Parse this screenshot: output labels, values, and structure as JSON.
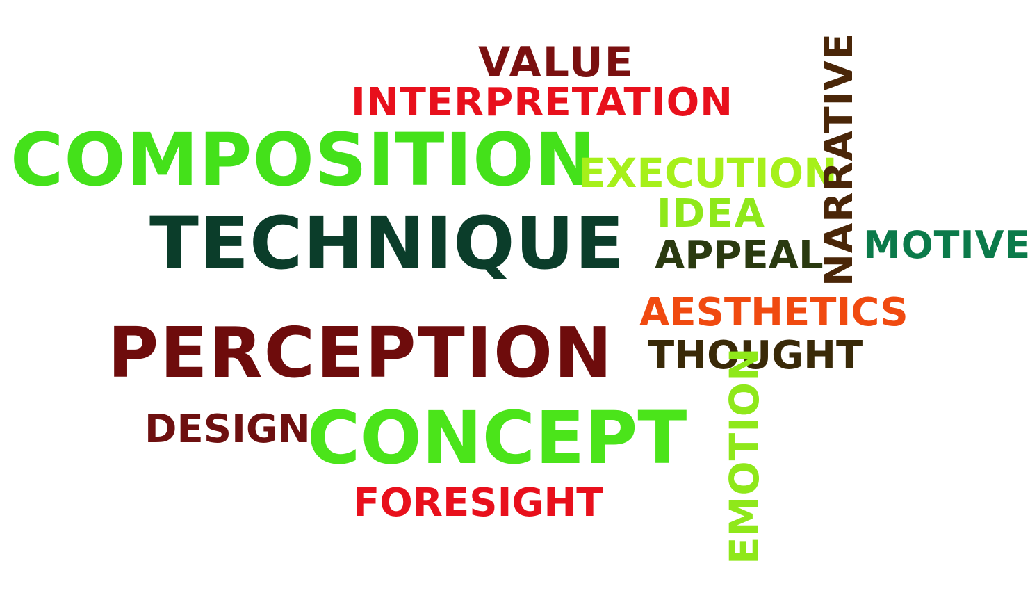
{
  "words": {
    "value": {
      "text": "VALUE",
      "color": "#7a1010"
    },
    "interpretation": {
      "text": "INTERPRETATION",
      "color": "#e8101c"
    },
    "composition": {
      "text": "COMPOSITION",
      "color": "#44e11a"
    },
    "execution": {
      "text": "EXECUTION",
      "color": "#a6f01a"
    },
    "idea": {
      "text": "IDEA",
      "color": "#8fe81a"
    },
    "technique": {
      "text": "TECHNIQUE",
      "color": "#0b3d2a"
    },
    "appeal": {
      "text": "APPEAL",
      "color": "#2a3a10"
    },
    "narrative": {
      "text": "NARRATIVE",
      "color": "#4a2608"
    },
    "motive": {
      "text": "MOTIVE",
      "color": "#0b7a4a"
    },
    "aesthetics": {
      "text": "AESTHETICS",
      "color": "#f04a10"
    },
    "perception": {
      "text": "PERCEPTION",
      "color": "#6e0c0c"
    },
    "thought": {
      "text": "THOUGHT",
      "color": "#3a2a08"
    },
    "design": {
      "text": "DESIGN",
      "color": "#6e1010"
    },
    "concept": {
      "text": "CONCEPT",
      "color": "#4be41a"
    },
    "foresight": {
      "text": "FORESIGHT",
      "color": "#e8101c"
    },
    "emotion": {
      "text": "EMOTION",
      "color": "#8fe81a"
    }
  }
}
